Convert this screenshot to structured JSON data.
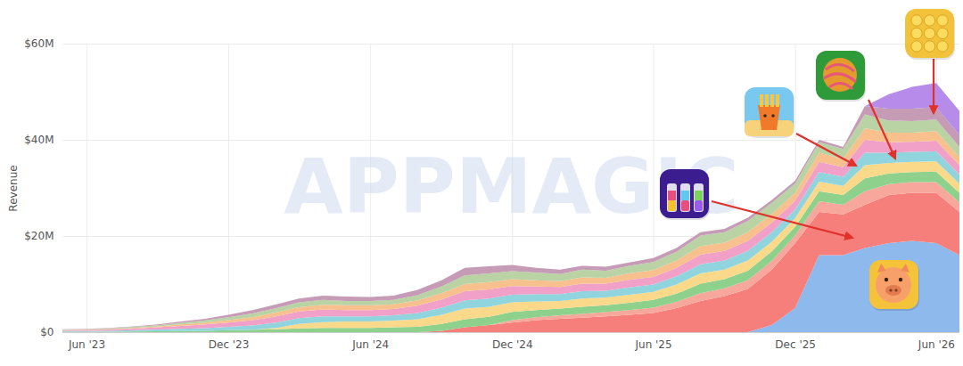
{
  "chart_data": {
    "type": "area",
    "stacked": true,
    "grid": true,
    "y_label": "Revenue",
    "annotations": [
      "APPMAGIC"
    ],
    "x": [
      "2023-05",
      "2023-06",
      "2023-07",
      "2023-08",
      "2023-09",
      "2023-10",
      "2023-11",
      "2023-12",
      "2024-01",
      "2024-02",
      "2024-03",
      "2024-04",
      "2024-05",
      "2024-06",
      "2024-07",
      "2024-08",
      "2024-09",
      "2024-10",
      "2024-11",
      "2024-12",
      "2025-01",
      "2025-02",
      "2025-03",
      "2025-04",
      "2025-05",
      "2025-06",
      "2025-07",
      "2025-08",
      "2025-09",
      "2025-10",
      "2025-11",
      "2025-12",
      "2026-01",
      "2026-02",
      "2026-03",
      "2026-04",
      "2026-05",
      "2026-06",
      "2026-07"
    ],
    "xlim": [
      "2023-05",
      "2026-07"
    ],
    "xticks": [
      {
        "value": "2023-06",
        "label": "Jun '23"
      },
      {
        "value": "2023-12",
        "label": "Dec '23"
      },
      {
        "value": "2024-06",
        "label": "Jun '24"
      },
      {
        "value": "2024-12",
        "label": "Dec '24"
      },
      {
        "value": "2025-06",
        "label": "Jun '25"
      },
      {
        "value": "2025-12",
        "label": "Dec '25"
      },
      {
        "value": "2026-06",
        "label": "Jun '26"
      }
    ],
    "ylim": [
      0,
      60
    ],
    "yticks": [
      {
        "value": 0,
        "label": "$0"
      },
      {
        "value": 20,
        "label": "$20M"
      },
      {
        "value": 40,
        "label": "$40M"
      },
      {
        "value": 60,
        "label": "$60M"
      }
    ],
    "series": [
      {
        "color": "#8db9ec",
        "values": [
          0,
          0,
          0,
          0,
          0,
          0,
          0,
          0,
          0,
          0,
          0,
          0,
          0,
          0,
          0,
          0,
          0,
          0,
          0,
          0,
          0,
          0,
          0,
          0,
          0,
          0,
          0,
          0,
          0,
          0,
          1.5,
          5,
          16,
          16,
          17.5,
          18.5,
          19,
          18.5,
          16
        ]
      },
      {
        "color": "#f67f7c",
        "values": [
          0,
          0,
          0,
          0,
          0,
          0,
          0,
          0,
          0,
          0,
          0,
          0,
          0,
          0,
          0,
          0,
          0.3,
          1,
          1.5,
          2,
          2.5,
          2.8,
          3,
          3.3,
          3.6,
          4,
          5,
          6.5,
          7.5,
          9,
          11.5,
          13.5,
          9,
          8.5,
          9,
          10,
          10,
          10.5,
          9
        ]
      },
      {
        "color": "#f7a79c",
        "values": [
          0,
          0,
          0,
          0,
          0,
          0,
          0,
          0,
          0,
          0,
          0,
          0,
          0,
          0,
          0,
          0,
          0,
          0,
          0,
          0.5,
          0.6,
          0.7,
          0.8,
          0.9,
          1,
          1.1,
          1.3,
          1.6,
          1.6,
          1.8,
          1.8,
          1.6,
          2.2,
          2,
          2.8,
          2.3,
          2.2,
          2.2,
          2
        ]
      },
      {
        "color": "#8ed18c",
        "values": [
          0.1,
          0.1,
          0.1,
          0.15,
          0.2,
          0.25,
          0.3,
          0.4,
          0.5,
          0.6,
          0.8,
          0.9,
          0.9,
          0.9,
          1,
          1.1,
          1.4,
          1.7,
          1.7,
          1.7,
          1.5,
          1.4,
          1.5,
          1.4,
          1.5,
          1.6,
          1.7,
          2,
          1.9,
          2,
          2,
          1.8,
          2.1,
          2,
          2.7,
          2.2,
          2.1,
          2.2,
          2
        ]
      },
      {
        "color": "#fbd98b",
        "values": [
          0,
          0,
          0,
          0,
          0,
          0,
          0,
          0,
          0,
          0.3,
          0.9,
          1.2,
          1.3,
          1.3,
          1.4,
          1.6,
          1.9,
          2.2,
          2.1,
          2,
          1.8,
          1.6,
          1.7,
          1.6,
          1.7,
          1.7,
          1.9,
          2.1,
          2,
          2.1,
          2,
          1.8,
          2,
          1.9,
          2.7,
          2.2,
          2.1,
          2.1,
          1.9
        ]
      },
      {
        "color": "#90d4de",
        "values": [
          0.15,
          0.15,
          0.2,
          0.25,
          0.35,
          0.45,
          0.55,
          0.7,
          0.9,
          1.1,
          1.2,
          1.2,
          1.1,
          1.1,
          1.1,
          1.3,
          1.5,
          1.7,
          1.7,
          1.6,
          1.5,
          1.4,
          1.5,
          1.4,
          1.5,
          1.5,
          1.7,
          1.9,
          1.9,
          2,
          2,
          1.8,
          2,
          1.9,
          2.6,
          2.1,
          2.1,
          2.1,
          1.9
        ]
      },
      {
        "color": "#f1a0c8",
        "values": [
          0.15,
          0.2,
          0.25,
          0.35,
          0.45,
          0.6,
          0.75,
          0.9,
          1.1,
          1.3,
          1.4,
          1.4,
          1.3,
          1.3,
          1.3,
          1.5,
          1.7,
          1.9,
          1.9,
          1.8,
          1.6,
          1.5,
          1.6,
          1.5,
          1.6,
          1.6,
          1.8,
          2,
          2,
          2.1,
          2,
          1.8,
          2.1,
          2,
          2.7,
          2.2,
          2.1,
          2.2,
          1.9
        ]
      },
      {
        "color": "#f8c08c",
        "values": [
          0.05,
          0.05,
          0.1,
          0.15,
          0.2,
          0.3,
          0.4,
          0.5,
          0.6,
          0.8,
          0.9,
          1,
          1,
          1,
          1,
          1.1,
          1.3,
          1.5,
          1.5,
          1.4,
          1.3,
          1.2,
          1.3,
          1.2,
          1.3,
          1.4,
          1.5,
          1.8,
          1.7,
          1.8,
          1.8,
          1.6,
          1.9,
          1.7,
          2.4,
          2,
          1.9,
          2,
          1.7
        ]
      },
      {
        "color": "#b9d3a4",
        "values": [
          0.1,
          0.1,
          0.15,
          0.2,
          0.25,
          0.35,
          0.45,
          0.6,
          0.8,
          0.9,
          1,
          1,
          0.9,
          0.9,
          0.9,
          1.1,
          1.4,
          1.8,
          1.8,
          1.7,
          1.6,
          1.5,
          1.6,
          1.5,
          1.6,
          1.7,
          1.8,
          2.2,
          2.2,
          2.3,
          2.3,
          2,
          2.2,
          2.1,
          2.9,
          2.5,
          2.4,
          2.4,
          2.1
        ]
      },
      {
        "color": "#c69bb6",
        "values": [
          0.05,
          0.1,
          0.1,
          0.1,
          0.15,
          0.25,
          0.35,
          0.5,
          0.7,
          0.8,
          0.8,
          0.9,
          0.9,
          0.8,
          0.9,
          1.1,
          1.3,
          1.6,
          1.5,
          1.3,
          1,
          0.9,
          0.8,
          0.8,
          0.7,
          0.8,
          0.8,
          0.7,
          0.7,
          0.7,
          0.6,
          0.6,
          0.5,
          0.4,
          1.7,
          2.5,
          2.6,
          2.6,
          2.5
        ]
      },
      {
        "color": "#b68be9",
        "values": [
          0,
          0,
          0,
          0,
          0,
          0,
          0,
          0,
          0,
          0,
          0,
          0,
          0,
          0,
          0,
          0,
          0,
          0,
          0,
          0,
          0,
          0,
          0,
          0,
          0,
          0,
          0,
          0,
          0,
          0,
          0,
          0,
          0,
          0,
          0,
          3,
          4.5,
          5,
          5
        ]
      }
    ]
  }
}
